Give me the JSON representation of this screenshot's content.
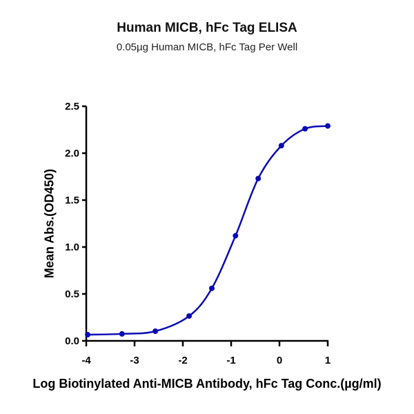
{
  "chart_data": {
    "type": "line",
    "title": "Human MICB, hFc Tag ELISA",
    "subtitle": "0.05µg Human MICB, hFc Tag Per Well",
    "xlabel": "Log Biotinylated Anti-MICB Antibody, hFc Tag Conc.(µg/ml)",
    "ylabel": "Mean Abs.(OD450)",
    "xlim": [
      -4,
      1
    ],
    "ylim": [
      0,
      2.5
    ],
    "xticks": [
      "-4",
      "-3",
      "-2",
      "-1",
      "0",
      "1"
    ],
    "yticks": [
      "0.0",
      "0.5",
      "1.0",
      "1.5",
      "2.0",
      "2.5"
    ],
    "grid": false,
    "legend": null,
    "series": [
      {
        "name": "Mean Abs.(OD450)",
        "color": "#0a0ab4",
        "x": [
          -3.97,
          -3.26,
          -2.57,
          -1.87,
          -1.4,
          -0.91,
          -0.44,
          0.04,
          0.53,
          1.0
        ],
        "y": [
          0.066,
          0.074,
          0.103,
          0.265,
          0.56,
          1.12,
          1.73,
          2.08,
          2.26,
          2.29
        ]
      }
    ]
  }
}
